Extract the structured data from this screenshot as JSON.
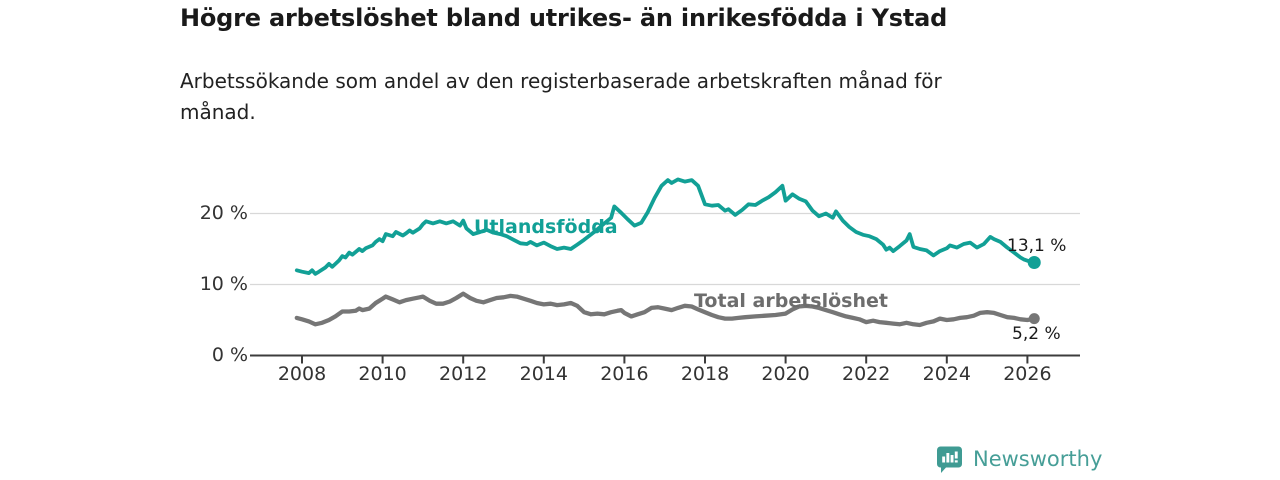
{
  "title": "Högre arbetslöshet bland utrikes- än inrikesfödda i Ystad",
  "subtitle": {
    "line1": "Arbetssökande som andel av den registerbaserade arbetskraften månad för",
    "line2": "månad."
  },
  "footer": {
    "brand": "Newsworthy",
    "brand_text_color": "#469e97",
    "brand_icon": "newsworthy-speech-bubble-bar-chart-icon",
    "brand_icon_color": "#3f9b93"
  },
  "colors": {
    "background": "#ffffff",
    "title_text": "#1a1a1a",
    "subtitle_text": "#222222",
    "tick_text": "#333333",
    "gridline": "#d8d8d8",
    "axis_line": "#3c3c3c",
    "series_foreign_born": "#12a096",
    "series_total": "#767676",
    "series_total_label": "#6d6d6d",
    "end_label_text": "#1a1a1a"
  },
  "chart_data": {
    "type": "line",
    "title": "Högre arbetslöshet bland utrikes- än inrikesfödda i Ystad",
    "subtitle": "Arbetssökande som andel av den registerbaserade arbetskraften månad för månad.",
    "xlabel": "",
    "ylabel": "",
    "grid": "horizontal-only",
    "legend_position": "inline-labels-on-lines",
    "x_axis": {
      "min": 2006.7,
      "max": 2027.3,
      "ticks": [
        {
          "value": 2008,
          "label": "2008"
        },
        {
          "value": 2010,
          "label": "2010"
        },
        {
          "value": 2012,
          "label": "2012"
        },
        {
          "value": 2014,
          "label": "2014"
        },
        {
          "value": 2016,
          "label": "2016"
        },
        {
          "value": 2018,
          "label": "2018"
        },
        {
          "value": 2020,
          "label": "2020"
        },
        {
          "value": 2022,
          "label": "2022"
        },
        {
          "value": 2024,
          "label": "2024"
        },
        {
          "value": 2026,
          "label": "2026"
        }
      ]
    },
    "y_axis": {
      "min": 0,
      "max": 28,
      "unit": "%",
      "ticks": [
        {
          "value": 0,
          "label": "0 %"
        },
        {
          "value": 10,
          "label": "10 %"
        },
        {
          "value": 20,
          "label": "20 %"
        }
      ]
    },
    "series": [
      {
        "name": "Utlandsfödda",
        "color": "#12a096",
        "label_color": "#12a096",
        "end_label": "13,1 %",
        "end_value": 13.1,
        "points": [
          [
            2007.87,
            12.0
          ],
          [
            2008.0,
            11.8
          ],
          [
            2008.17,
            11.6
          ],
          [
            2008.25,
            12.0
          ],
          [
            2008.33,
            11.5
          ],
          [
            2008.42,
            11.8
          ],
          [
            2008.58,
            12.4
          ],
          [
            2008.67,
            12.9
          ],
          [
            2008.75,
            12.5
          ],
          [
            2008.83,
            12.9
          ],
          [
            2008.92,
            13.4
          ],
          [
            2009.0,
            14.0
          ],
          [
            2009.08,
            13.8
          ],
          [
            2009.17,
            14.5
          ],
          [
            2009.25,
            14.2
          ],
          [
            2009.42,
            15.0
          ],
          [
            2009.5,
            14.7
          ],
          [
            2009.58,
            15.1
          ],
          [
            2009.75,
            15.5
          ],
          [
            2009.83,
            16.0
          ],
          [
            2009.92,
            16.4
          ],
          [
            2010.0,
            16.1
          ],
          [
            2010.08,
            17.1
          ],
          [
            2010.25,
            16.8
          ],
          [
            2010.33,
            17.4
          ],
          [
            2010.5,
            16.9
          ],
          [
            2010.58,
            17.2
          ],
          [
            2010.67,
            17.6
          ],
          [
            2010.75,
            17.3
          ],
          [
            2010.92,
            17.9
          ],
          [
            2011.0,
            18.5
          ],
          [
            2011.08,
            18.9
          ],
          [
            2011.25,
            18.6
          ],
          [
            2011.42,
            18.9
          ],
          [
            2011.58,
            18.6
          ],
          [
            2011.75,
            18.9
          ],
          [
            2011.92,
            18.3
          ],
          [
            2012.0,
            19.0
          ],
          [
            2012.08,
            17.9
          ],
          [
            2012.25,
            17.1
          ],
          [
            2012.42,
            17.4
          ],
          [
            2012.58,
            17.7
          ],
          [
            2012.75,
            17.3
          ],
          [
            2012.92,
            17.1
          ],
          [
            2013.08,
            16.8
          ],
          [
            2013.25,
            16.3
          ],
          [
            2013.42,
            15.8
          ],
          [
            2013.58,
            15.7
          ],
          [
            2013.67,
            16.0
          ],
          [
            2013.83,
            15.5
          ],
          [
            2014.0,
            15.9
          ],
          [
            2014.17,
            15.4
          ],
          [
            2014.33,
            15.0
          ],
          [
            2014.5,
            15.2
          ],
          [
            2014.67,
            15.0
          ],
          [
            2014.83,
            15.6
          ],
          [
            2015.0,
            16.3
          ],
          [
            2015.25,
            17.4
          ],
          [
            2015.5,
            18.6
          ],
          [
            2015.67,
            19.4
          ],
          [
            2015.75,
            21.0
          ],
          [
            2015.92,
            20.1
          ],
          [
            2016.08,
            19.2
          ],
          [
            2016.25,
            18.3
          ],
          [
            2016.42,
            18.7
          ],
          [
            2016.58,
            20.2
          ],
          [
            2016.75,
            22.2
          ],
          [
            2016.92,
            23.9
          ],
          [
            2017.08,
            24.7
          ],
          [
            2017.17,
            24.3
          ],
          [
            2017.33,
            24.8
          ],
          [
            2017.5,
            24.5
          ],
          [
            2017.67,
            24.7
          ],
          [
            2017.83,
            23.9
          ],
          [
            2018.0,
            21.3
          ],
          [
            2018.17,
            21.1
          ],
          [
            2018.33,
            21.2
          ],
          [
            2018.5,
            20.4
          ],
          [
            2018.58,
            20.6
          ],
          [
            2018.75,
            19.8
          ],
          [
            2018.92,
            20.5
          ],
          [
            2019.08,
            21.3
          ],
          [
            2019.25,
            21.2
          ],
          [
            2019.42,
            21.8
          ],
          [
            2019.58,
            22.3
          ],
          [
            2019.75,
            23.0
          ],
          [
            2019.92,
            23.9
          ],
          [
            2020.0,
            21.8
          ],
          [
            2020.17,
            22.7
          ],
          [
            2020.33,
            22.1
          ],
          [
            2020.5,
            21.7
          ],
          [
            2020.67,
            20.4
          ],
          [
            2020.83,
            19.6
          ],
          [
            2021.0,
            20.0
          ],
          [
            2021.17,
            19.4
          ],
          [
            2021.25,
            20.3
          ],
          [
            2021.42,
            19.0
          ],
          [
            2021.58,
            18.1
          ],
          [
            2021.75,
            17.4
          ],
          [
            2021.92,
            17.0
          ],
          [
            2022.08,
            16.8
          ],
          [
            2022.25,
            16.4
          ],
          [
            2022.42,
            15.6
          ],
          [
            2022.5,
            14.9
          ],
          [
            2022.58,
            15.2
          ],
          [
            2022.67,
            14.7
          ],
          [
            2022.83,
            15.4
          ],
          [
            2023.0,
            16.2
          ],
          [
            2023.08,
            17.1
          ],
          [
            2023.17,
            15.3
          ],
          [
            2023.33,
            15.0
          ],
          [
            2023.5,
            14.8
          ],
          [
            2023.67,
            14.1
          ],
          [
            2023.83,
            14.7
          ],
          [
            2024.0,
            15.1
          ],
          [
            2024.08,
            15.5
          ],
          [
            2024.25,
            15.2
          ],
          [
            2024.42,
            15.7
          ],
          [
            2024.58,
            15.9
          ],
          [
            2024.75,
            15.2
          ],
          [
            2024.92,
            15.7
          ],
          [
            2025.08,
            16.7
          ],
          [
            2025.17,
            16.4
          ],
          [
            2025.33,
            16.0
          ],
          [
            2025.5,
            15.2
          ],
          [
            2025.67,
            14.5
          ],
          [
            2025.83,
            13.8
          ],
          [
            2025.92,
            13.5
          ],
          [
            2026.08,
            13.2
          ],
          [
            2026.17,
            13.1
          ]
        ]
      },
      {
        "name": "Total arbetslöshet",
        "color": "#767676",
        "label_color": "#6d6d6d",
        "end_label": "5,2 %",
        "end_value": 5.2,
        "points": [
          [
            2007.87,
            5.3
          ],
          [
            2008.0,
            5.1
          ],
          [
            2008.17,
            4.8
          ],
          [
            2008.33,
            4.4
          ],
          [
            2008.5,
            4.6
          ],
          [
            2008.67,
            5.0
          ],
          [
            2008.83,
            5.5
          ],
          [
            2009.0,
            6.2
          ],
          [
            2009.17,
            6.2
          ],
          [
            2009.33,
            6.3
          ],
          [
            2009.42,
            6.6
          ],
          [
            2009.5,
            6.4
          ],
          [
            2009.67,
            6.6
          ],
          [
            2009.83,
            7.4
          ],
          [
            2010.0,
            8.0
          ],
          [
            2010.08,
            8.3
          ],
          [
            2010.25,
            7.9
          ],
          [
            2010.42,
            7.5
          ],
          [
            2010.58,
            7.8
          ],
          [
            2010.75,
            8.0
          ],
          [
            2010.92,
            8.2
          ],
          [
            2011.0,
            8.3
          ],
          [
            2011.17,
            7.7
          ],
          [
            2011.33,
            7.3
          ],
          [
            2011.5,
            7.3
          ],
          [
            2011.67,
            7.6
          ],
          [
            2011.83,
            8.1
          ],
          [
            2012.0,
            8.7
          ],
          [
            2012.17,
            8.1
          ],
          [
            2012.33,
            7.7
          ],
          [
            2012.5,
            7.5
          ],
          [
            2012.67,
            7.8
          ],
          [
            2012.83,
            8.1
          ],
          [
            2013.0,
            8.2
          ],
          [
            2013.17,
            8.4
          ],
          [
            2013.33,
            8.3
          ],
          [
            2013.5,
            8.0
          ],
          [
            2013.67,
            7.7
          ],
          [
            2013.83,
            7.4
          ],
          [
            2014.0,
            7.2
          ],
          [
            2014.17,
            7.3
          ],
          [
            2014.33,
            7.1
          ],
          [
            2014.5,
            7.2
          ],
          [
            2014.67,
            7.4
          ],
          [
            2014.83,
            7.0
          ],
          [
            2015.0,
            6.1
          ],
          [
            2015.17,
            5.8
          ],
          [
            2015.33,
            5.9
          ],
          [
            2015.5,
            5.8
          ],
          [
            2015.67,
            6.1
          ],
          [
            2015.83,
            6.3
          ],
          [
            2015.92,
            6.4
          ],
          [
            2016.0,
            6.0
          ],
          [
            2016.17,
            5.5
          ],
          [
            2016.33,
            5.8
          ],
          [
            2016.5,
            6.1
          ],
          [
            2016.67,
            6.7
          ],
          [
            2016.83,
            6.8
          ],
          [
            2017.0,
            6.6
          ],
          [
            2017.17,
            6.4
          ],
          [
            2017.33,
            6.7
          ],
          [
            2017.5,
            7.0
          ],
          [
            2017.67,
            6.9
          ],
          [
            2017.83,
            6.5
          ],
          [
            2018.0,
            6.1
          ],
          [
            2018.17,
            5.7
          ],
          [
            2018.33,
            5.4
          ],
          [
            2018.5,
            5.2
          ],
          [
            2018.67,
            5.2
          ],
          [
            2018.83,
            5.3
          ],
          [
            2019.0,
            5.4
          ],
          [
            2019.25,
            5.5
          ],
          [
            2019.5,
            5.6
          ],
          [
            2019.75,
            5.7
          ],
          [
            2020.0,
            5.9
          ],
          [
            2020.17,
            6.5
          ],
          [
            2020.33,
            6.9
          ],
          [
            2020.5,
            7.0
          ],
          [
            2020.67,
            6.9
          ],
          [
            2020.83,
            6.7
          ],
          [
            2021.0,
            6.4
          ],
          [
            2021.17,
            6.1
          ],
          [
            2021.33,
            5.8
          ],
          [
            2021.5,
            5.5
          ],
          [
            2021.67,
            5.3
          ],
          [
            2021.83,
            5.1
          ],
          [
            2022.0,
            4.7
          ],
          [
            2022.17,
            4.9
          ],
          [
            2022.33,
            4.7
          ],
          [
            2022.5,
            4.6
          ],
          [
            2022.67,
            4.5
          ],
          [
            2022.83,
            4.4
          ],
          [
            2023.0,
            4.6
          ],
          [
            2023.17,
            4.4
          ],
          [
            2023.33,
            4.3
          ],
          [
            2023.5,
            4.6
          ],
          [
            2023.67,
            4.8
          ],
          [
            2023.83,
            5.2
          ],
          [
            2024.0,
            5.0
          ],
          [
            2024.17,
            5.1
          ],
          [
            2024.33,
            5.3
          ],
          [
            2024.5,
            5.4
          ],
          [
            2024.67,
            5.6
          ],
          [
            2024.83,
            6.0
          ],
          [
            2025.0,
            6.1
          ],
          [
            2025.17,
            6.0
          ],
          [
            2025.33,
            5.7
          ],
          [
            2025.5,
            5.4
          ],
          [
            2025.67,
            5.3
          ],
          [
            2025.83,
            5.1
          ],
          [
            2026.0,
            5.0
          ],
          [
            2026.17,
            5.2
          ]
        ]
      }
    ]
  }
}
